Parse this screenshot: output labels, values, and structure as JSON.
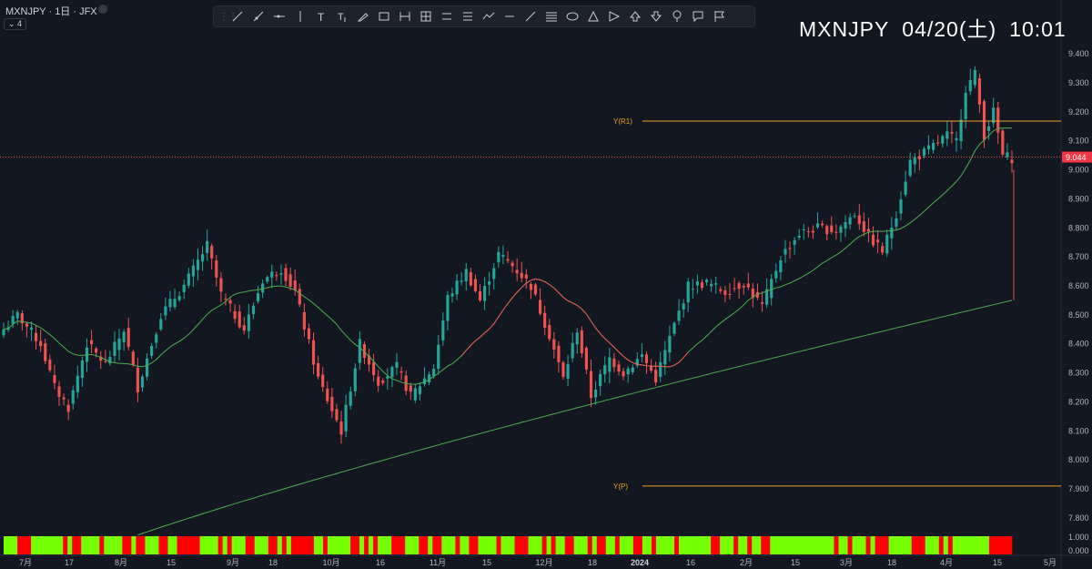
{
  "header": {
    "symbol_info": "MXNJPY · 1日 · JFX",
    "indicator_count": "4"
  },
  "clock": {
    "symbol": "MXNJPY",
    "date": "04/20(土)",
    "time": "10:01"
  },
  "toolbar": {
    "tools": [
      "trend-line",
      "ray",
      "horizontal-ray",
      "vertical-line",
      "text",
      "anchored-text",
      "brush",
      "rectangle",
      "date-range",
      "price-date-range",
      "parallel-channel",
      "fib-channel",
      "path",
      "horizontal-line",
      "extended-line",
      "fib-retracement",
      "ellipse",
      "triangle",
      "arrow-pointer",
      "arrow-up",
      "arrow-down",
      "pin",
      "callout",
      "flag"
    ]
  },
  "chart_data": {
    "type": "candlestick",
    "symbol": "MXNJPY",
    "timeframe": "1日",
    "ylim": [
      7.74,
      9.46
    ],
    "y_ticks": [
      "9.400",
      "9.300",
      "9.200",
      "9.100",
      "9.000",
      "8.900",
      "8.800",
      "8.700",
      "8.600",
      "8.500",
      "8.400",
      "8.300",
      "8.200",
      "8.100",
      "8.000",
      "7.900",
      "7.800"
    ],
    "x_ticks": [
      "7月",
      "17",
      "8月",
      "15",
      "9月",
      "18",
      "10月",
      "16",
      "11月",
      "15",
      "12月",
      "18",
      "2024",
      "16",
      "2月",
      "15",
      "3月",
      "18",
      "4月",
      "15",
      "5月"
    ],
    "current_price": {
      "value": 9.044,
      "label": "9.044"
    },
    "levels": [
      {
        "name": "Y(R1)",
        "value": 9.168,
        "color": "#f0a020"
      },
      {
        "name": "Y(P)",
        "value": 7.91,
        "color": "#f0a020"
      }
    ],
    "pivots": [
      [
        0,
        8.45
      ],
      [
        3,
        8.5
      ],
      [
        8,
        8.4
      ],
      [
        11,
        8.25
      ],
      [
        14,
        8.18
      ],
      [
        18,
        8.4
      ],
      [
        22,
        8.33
      ],
      [
        26,
        8.45
      ],
      [
        29,
        8.25
      ],
      [
        34,
        8.5
      ],
      [
        39,
        8.6
      ],
      [
        44,
        8.74
      ],
      [
        47,
        8.57
      ],
      [
        52,
        8.45
      ],
      [
        56,
        8.62
      ],
      [
        60,
        8.66
      ],
      [
        63,
        8.58
      ],
      [
        68,
        8.28
      ],
      [
        73,
        8.1
      ],
      [
        77,
        8.4
      ],
      [
        81,
        8.27
      ],
      [
        85,
        8.32
      ],
      [
        88,
        8.22
      ],
      [
        93,
        8.32
      ],
      [
        96,
        8.56
      ],
      [
        100,
        8.65
      ],
      [
        103,
        8.55
      ],
      [
        107,
        8.71
      ],
      [
        110,
        8.67
      ],
      [
        114,
        8.6
      ],
      [
        118,
        8.43
      ],
      [
        121,
        8.28
      ],
      [
        124,
        8.45
      ],
      [
        127,
        8.22
      ],
      [
        131,
        8.35
      ],
      [
        134,
        8.3
      ],
      [
        138,
        8.36
      ],
      [
        141,
        8.28
      ],
      [
        144,
        8.42
      ],
      [
        148,
        8.6
      ],
      [
        152,
        8.61
      ],
      [
        156,
        8.58
      ],
      [
        160,
        8.61
      ],
      [
        164,
        8.53
      ],
      [
        168,
        8.7
      ],
      [
        172,
        8.78
      ],
      [
        176,
        8.8
      ],
      [
        180,
        8.79
      ],
      [
        184,
        8.85
      ],
      [
        187,
        8.77
      ],
      [
        190,
        8.72
      ],
      [
        193,
        8.85
      ],
      [
        196,
        9.03
      ],
      [
        200,
        9.07
      ],
      [
        204,
        9.12
      ],
      [
        206,
        9.1
      ],
      [
        208,
        9.28
      ],
      [
        210,
        9.33
      ],
      [
        212,
        9.12
      ],
      [
        214,
        9.2
      ],
      [
        216,
        9.05
      ],
      [
        218,
        9.04
      ]
    ],
    "red_line_len": 60,
    "volatility_bar": {
      "ylim": [
        0.0,
        1.0
      ],
      "values": [
        1,
        1,
        1,
        0,
        0,
        0,
        1,
        1,
        1,
        1,
        1,
        1,
        1,
        0,
        1,
        0,
        0,
        1,
        1,
        1,
        1,
        0,
        1,
        1,
        1,
        1,
        0,
        0,
        1,
        0,
        0,
        1,
        1,
        1,
        0,
        0,
        1,
        1,
        0,
        0,
        0,
        0,
        0,
        1,
        1,
        1,
        1,
        0,
        1,
        0,
        1,
        1,
        1,
        0,
        0,
        1,
        1,
        1,
        0,
        0,
        1,
        0,
        1,
        0,
        0,
        0,
        0,
        0,
        1,
        1,
        0,
        1,
        1,
        1,
        1,
        1,
        0,
        0,
        1,
        0,
        1,
        0,
        1,
        1,
        1,
        0,
        0,
        0,
        1,
        1,
        1,
        0,
        0,
        1,
        0,
        0,
        1,
        1,
        1,
        0,
        1,
        1,
        0,
        0,
        1,
        1,
        1,
        1,
        0,
        1,
        1,
        1,
        0,
        0,
        0,
        1,
        1,
        1,
        0,
        1,
        0,
        1,
        1,
        0,
        0,
        1,
        1,
        1,
        0,
        1,
        0,
        0,
        1,
        1,
        0,
        1,
        1,
        1,
        0,
        0,
        1,
        1,
        0,
        1,
        1,
        1,
        1,
        0,
        1,
        1,
        1,
        1,
        1,
        1,
        1,
        0,
        0,
        1,
        1,
        1,
        0,
        1,
        1,
        0,
        1,
        1,
        0,
        0,
        1,
        1,
        1,
        1,
        1,
        1,
        1,
        1,
        1,
        1,
        1,
        1,
        1,
        1,
        0,
        1,
        1,
        0,
        1,
        1,
        1,
        0,
        1,
        0,
        0,
        0,
        1,
        1,
        1,
        1,
        1,
        0,
        0,
        0,
        1,
        1,
        1,
        0,
        1,
        0,
        1,
        1,
        1,
        1,
        1,
        1,
        1,
        1,
        0,
        0,
        0,
        0,
        0
      ],
      "ticks": [
        "1.000",
        "0.000"
      ]
    }
  }
}
